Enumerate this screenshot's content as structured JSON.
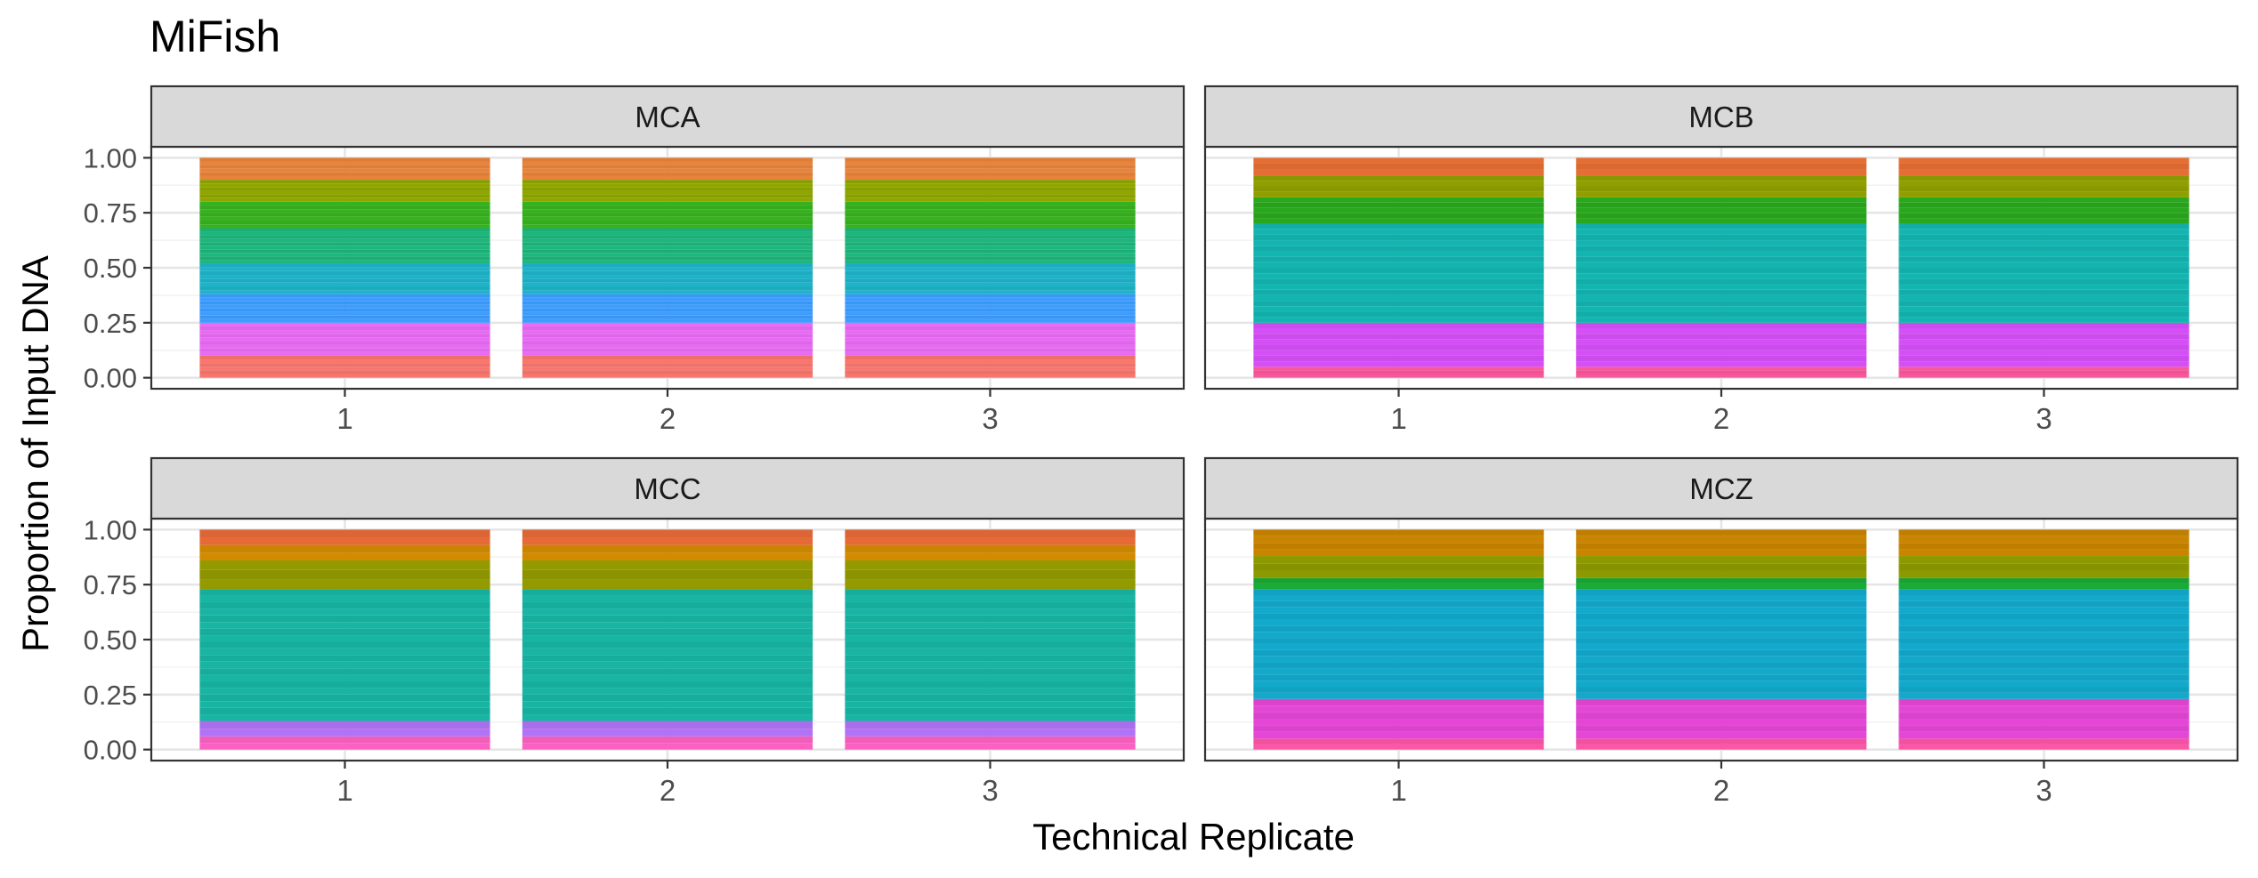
{
  "chart_data": {
    "type": "bar",
    "title": "MiFish",
    "xlabel": "Technical Replicate",
    "ylabel": "Proportion of Input DNA",
    "stacked": true,
    "categories": [
      "1",
      "2",
      "3"
    ],
    "ylim": [
      0,
      1
    ],
    "yticks": [
      0,
      0.25,
      0.5,
      0.75,
      1
    ],
    "ytick_labels": [
      "0.00",
      "0.25",
      "0.50",
      "0.75",
      "1.00"
    ],
    "grid": true,
    "legend": "none",
    "facets": [
      {
        "name": "MCA",
        "note": "about 60 roughly equal stacked layers, colors sweeping the hue wheel",
        "segments": [
          {
            "ymin": 0.0,
            "ymax": 0.1,
            "color": "#F8766D",
            "bands": 6
          },
          {
            "ymin": 0.1,
            "ymax": 0.25,
            "color": "#E86BF3",
            "bands": 9
          },
          {
            "ymin": 0.25,
            "ymax": 0.38,
            "color": "#3D9DFF",
            "bands": 8
          },
          {
            "ymin": 0.38,
            "ymax": 0.52,
            "color": "#1EB3C9",
            "bands": 8
          },
          {
            "ymin": 0.52,
            "ymax": 0.68,
            "color": "#1DB67C",
            "bands": 10
          },
          {
            "ymin": 0.68,
            "ymax": 0.8,
            "color": "#37B21F",
            "bands": 7
          },
          {
            "ymin": 0.8,
            "ymax": 0.9,
            "color": "#8FA600",
            "bands": 6
          },
          {
            "ymin": 0.9,
            "ymax": 1.0,
            "color": "#E7833A",
            "bands": 6
          }
        ]
      },
      {
        "name": "MCB",
        "segments": [
          {
            "ymin": 0.0,
            "ymax": 0.05,
            "color": "#F9579B",
            "bands": 3
          },
          {
            "ymin": 0.05,
            "ymax": 0.25,
            "color": "#D54FF7",
            "bands": 8
          },
          {
            "ymin": 0.25,
            "ymax": 0.7,
            "color": "#13B5B1",
            "bands": 18
          },
          {
            "ymin": 0.7,
            "ymax": 0.82,
            "color": "#2AA81D",
            "bands": 5
          },
          {
            "ymin": 0.82,
            "ymax": 0.92,
            "color": "#8F9F00",
            "bands": 4
          },
          {
            "ymin": 0.92,
            "ymax": 1.0,
            "color": "#E46E33",
            "bands": 3
          }
        ]
      },
      {
        "name": "MCC",
        "segments": [
          {
            "ymin": 0.0,
            "ymax": 0.06,
            "color": "#FB61C3",
            "bands": 2
          },
          {
            "ymin": 0.06,
            "ymax": 0.13,
            "color": "#B173F5",
            "bands": 2
          },
          {
            "ymin": 0.13,
            "ymax": 0.73,
            "color": "#18B5A4",
            "bands": 20
          },
          {
            "ymin": 0.73,
            "ymax": 0.86,
            "color": "#929A00",
            "bands": 3
          },
          {
            "ymin": 0.86,
            "ymax": 0.93,
            "color": "#D28A00",
            "bands": 2
          },
          {
            "ymin": 0.93,
            "ymax": 1.0,
            "color": "#E66A38",
            "bands": 2
          }
        ]
      },
      {
        "name": "MCZ",
        "segments": [
          {
            "ymin": 0.0,
            "ymax": 0.05,
            "color": "#FC56A6",
            "bands": 2
          },
          {
            "ymin": 0.05,
            "ymax": 0.23,
            "color": "#E447D6",
            "bands": 6
          },
          {
            "ymin": 0.23,
            "ymax": 0.73,
            "color": "#12A9CC",
            "bands": 18
          },
          {
            "ymin": 0.73,
            "ymax": 0.78,
            "color": "#1AAA36",
            "bands": 2
          },
          {
            "ymin": 0.78,
            "ymax": 0.88,
            "color": "#8D9900",
            "bands": 3
          },
          {
            "ymin": 0.88,
            "ymax": 1.0,
            "color": "#C98400",
            "bands": 4
          }
        ]
      }
    ]
  }
}
